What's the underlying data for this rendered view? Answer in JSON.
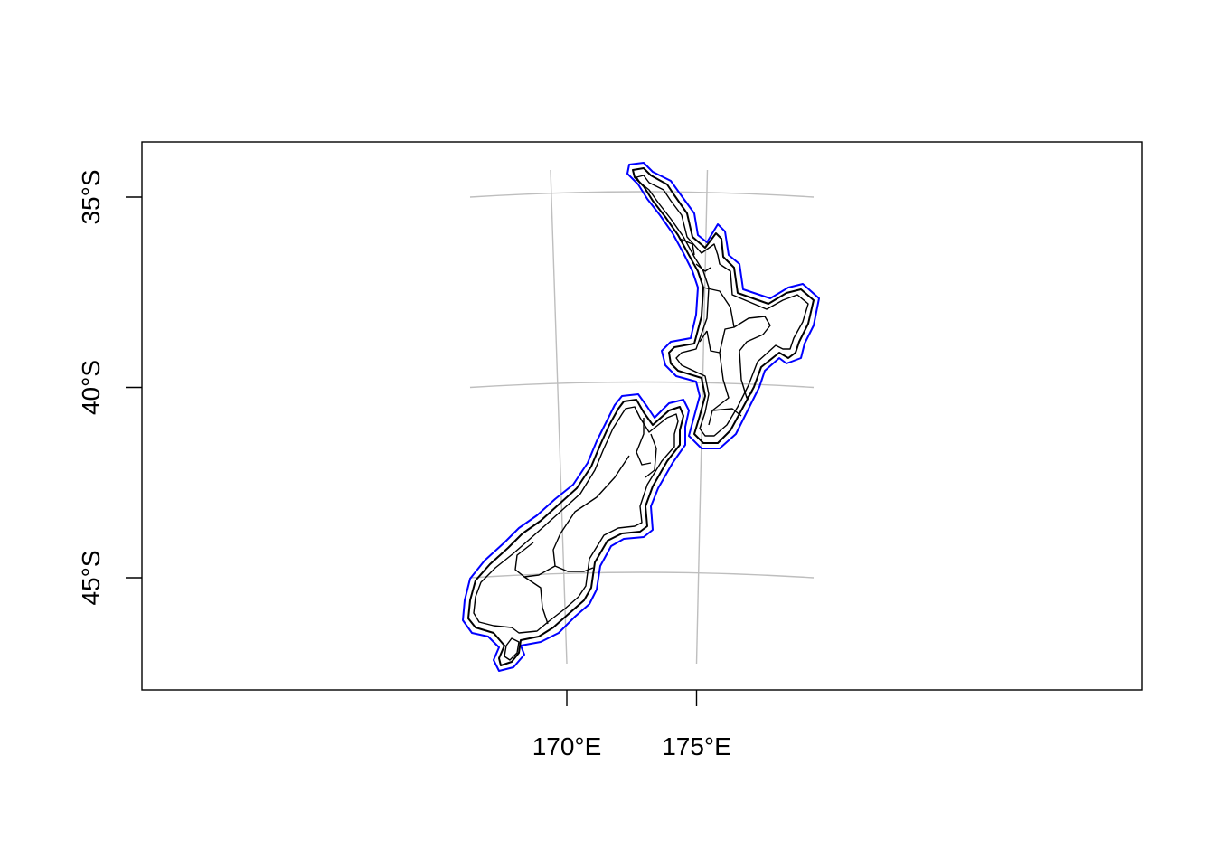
{
  "map": {
    "x_ticks": [
      {
        "lon": 170,
        "label": "170°E"
      },
      {
        "lon": 175,
        "label": "175°E"
      }
    ],
    "y_ticks": [
      {
        "lat": 35,
        "label": "35°S"
      },
      {
        "lat": 40,
        "label": "40°S"
      },
      {
        "lat": 45,
        "label": "45°S"
      }
    ],
    "graticule": {
      "lons": [
        170,
        175
      ],
      "lats": [
        35,
        40,
        45
      ],
      "color": "#bebebe"
    },
    "layers": {
      "regions_stroke": "#000000",
      "buffer_inner_color": "#000000",
      "buffer_outer_color": "#0000ff",
      "frame_color": "#000000"
    }
  }
}
